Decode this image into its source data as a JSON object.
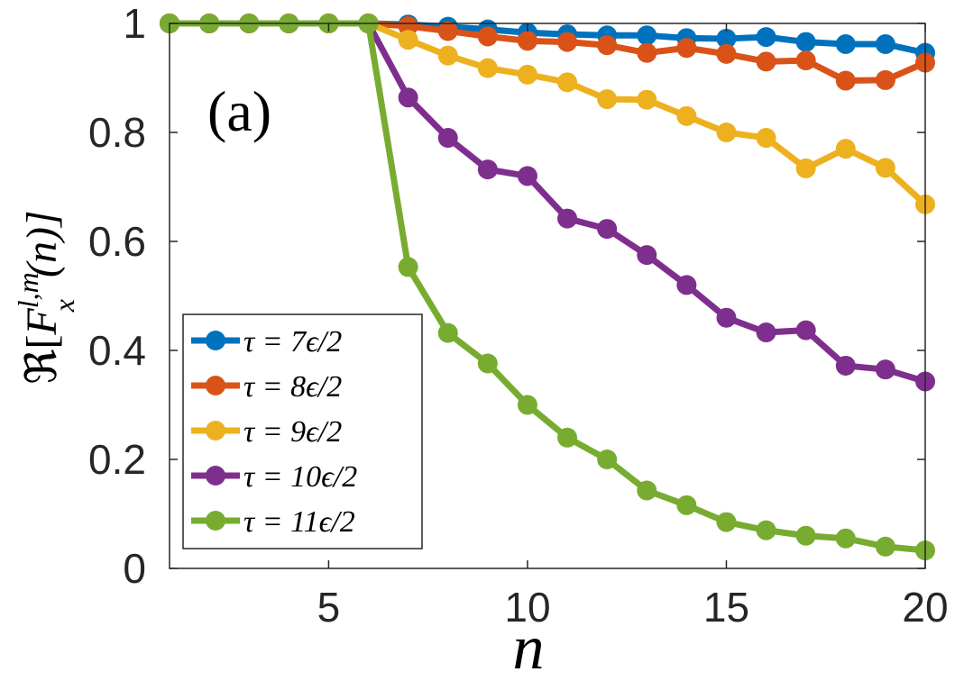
{
  "chart_data": {
    "type": "line",
    "panel_label": "(a)",
    "xlabel": "n",
    "ylabel": "ℜ[F_x^{l,m}(n)]",
    "ylabel_parts": {
      "prefix": "ℜ[",
      "base": "F",
      "sup": "l,m",
      "sub": "x",
      "suffix": "(n)]"
    },
    "xlim": [
      1,
      20
    ],
    "ylim": [
      0,
      1
    ],
    "xticks": [
      5,
      10,
      15,
      20
    ],
    "yticks": [
      0,
      0.2,
      0.4,
      0.6,
      0.8,
      1
    ],
    "ytick_labels": [
      "0",
      "0.2",
      "0.4",
      "0.6",
      "0.8",
      "1"
    ],
    "grid": false,
    "legend_position": "bottom-left",
    "x": [
      1,
      2,
      3,
      4,
      5,
      6,
      7,
      8,
      9,
      10,
      11,
      12,
      13,
      14,
      15,
      16,
      17,
      18,
      19,
      20
    ],
    "series": [
      {
        "name": "τ = 7ϵ/2",
        "color": "#0072BD",
        "values": [
          1,
          1,
          1,
          1,
          1,
          1,
          0.998,
          0.994,
          0.989,
          0.983,
          0.98,
          0.978,
          0.978,
          0.973,
          0.972,
          0.975,
          0.966,
          0.962,
          0.962,
          0.946
        ]
      },
      {
        "name": "τ = 8ϵ/2",
        "color": "#D95319",
        "values": [
          1,
          1,
          1,
          1,
          1,
          1,
          0.995,
          0.986,
          0.976,
          0.968,
          0.966,
          0.96,
          0.946,
          0.955,
          0.944,
          0.93,
          0.932,
          0.895,
          0.896,
          0.928
        ]
      },
      {
        "name": "τ = 9ϵ/2",
        "color": "#EDB120",
        "values": [
          1,
          1,
          1,
          1,
          1,
          1,
          0.97,
          0.941,
          0.918,
          0.906,
          0.892,
          0.861,
          0.86,
          0.83,
          0.8,
          0.79,
          0.734,
          0.77,
          0.735,
          0.668
        ]
      },
      {
        "name": "τ = 10ϵ/2",
        "color": "#7E2F8E",
        "values": [
          1,
          1,
          1,
          1,
          1,
          1,
          0.864,
          0.79,
          0.732,
          0.72,
          0.642,
          0.623,
          0.575,
          0.52,
          0.46,
          0.433,
          0.437,
          0.372,
          0.365,
          0.343
        ]
      },
      {
        "name": "τ = 11ϵ/2",
        "color": "#77AC30",
        "values": [
          1,
          1,
          1,
          1,
          1,
          1,
          0.553,
          0.432,
          0.376,
          0.3,
          0.24,
          0.2,
          0.143,
          0.116,
          0.085,
          0.07,
          0.06,
          0.055,
          0.04,
          0.033
        ]
      }
    ]
  }
}
